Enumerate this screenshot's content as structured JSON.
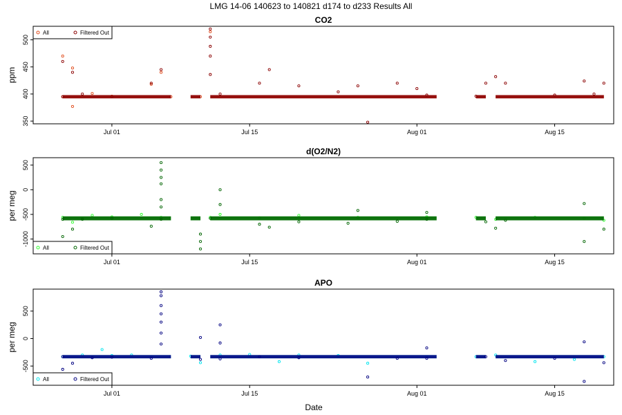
{
  "page_title": "LMG   14-06    140623 to 140821    d174 to d233   Results All",
  "xlabel": "Date",
  "x_ticks": [
    "Jul 01",
    "Jul 15",
    "Aug 01",
    "Aug 15"
  ],
  "chart_data": [
    {
      "type": "scatter",
      "title": "CO2",
      "xlabel": "",
      "ylabel": "ppm",
      "xlim": [
        "2014-06-23",
        "2014-08-21"
      ],
      "ylim": [
        345,
        525
      ],
      "yticks": [
        350,
        400,
        450,
        500
      ],
      "legend_position": "top-left",
      "series": [
        {
          "name": "All",
          "color": "#e04a1a",
          "pattern": "baseline",
          "values": [
            [
              "2014-06-26",
              395
            ],
            [
              "2014-06-26",
              470
            ],
            [
              "2014-06-27",
              448
            ],
            [
              "2014-06-27",
              377
            ],
            [
              "2014-06-29",
              401
            ],
            [
              "2014-07-01",
              396
            ],
            [
              "2014-07-05",
              418
            ],
            [
              "2014-07-06",
              440
            ],
            [
              "2014-07-07",
              395
            ],
            [
              "2014-07-10",
              395
            ],
            [
              "2014-07-11",
              515
            ]
          ]
        },
        {
          "name": "Filtered Out",
          "color": "#8b0000",
          "pattern": "baseline",
          "values": [
            [
              "2014-06-26",
              395
            ],
            [
              "2014-06-26",
              460
            ],
            [
              "2014-06-27",
              440
            ],
            [
              "2014-06-28",
              400
            ],
            [
              "2014-07-01",
              395
            ],
            [
              "2014-07-05",
              420
            ],
            [
              "2014-07-06",
              445
            ],
            [
              "2014-07-11",
              520
            ],
            [
              "2014-07-11",
              505
            ],
            [
              "2014-07-11",
              488
            ],
            [
              "2014-07-11",
              470
            ],
            [
              "2014-07-11",
              436
            ],
            [
              "2014-07-12",
              400
            ],
            [
              "2014-07-16",
              420
            ],
            [
              "2014-07-17",
              445
            ],
            [
              "2014-07-20",
              415
            ],
            [
              "2014-07-24",
              404
            ],
            [
              "2014-07-26",
              415
            ],
            [
              "2014-07-27",
              348
            ],
            [
              "2014-07-30",
              420
            ],
            [
              "2014-08-01",
              410
            ],
            [
              "2014-08-02",
              398
            ],
            [
              "2014-08-07",
              396
            ],
            [
              "2014-08-08",
              420
            ],
            [
              "2014-08-09",
              432
            ],
            [
              "2014-08-10",
              420
            ],
            [
              "2014-08-15",
              398
            ],
            [
              "2014-08-18",
              424
            ],
            [
              "2014-08-19",
              400
            ],
            [
              "2014-08-20",
              420
            ]
          ]
        }
      ]
    },
    {
      "type": "scatter",
      "title": "d(O2/N2)",
      "xlabel": "",
      "ylabel": "per meg",
      "xlim": [
        "2014-06-23",
        "2014-08-21"
      ],
      "ylim": [
        -1300,
        650
      ],
      "yticks": [
        -1000,
        -500,
        0,
        500
      ],
      "legend_position": "bottom-left",
      "series": [
        {
          "name": "All",
          "color": "#33ff33",
          "pattern": "baseline",
          "values": [
            [
              "2014-06-26",
              -560
            ],
            [
              "2014-06-27",
              -660
            ],
            [
              "2014-06-28",
              -590
            ],
            [
              "2014-06-29",
              -520
            ],
            [
              "2014-07-01",
              -550
            ],
            [
              "2014-07-04",
              -500
            ],
            [
              "2014-07-06",
              -560
            ],
            [
              "2014-07-11",
              -560
            ],
            [
              "2014-07-12",
              -500
            ],
            [
              "2014-07-16",
              -570
            ],
            [
              "2014-07-20",
              -520
            ],
            [
              "2014-07-26",
              -560
            ],
            [
              "2014-08-02",
              -550
            ],
            [
              "2014-08-07",
              -560
            ],
            [
              "2014-08-09",
              -600
            ],
            [
              "2014-08-13",
              -560
            ],
            [
              "2014-08-18",
              -580
            ],
            [
              "2014-08-20",
              -620
            ]
          ]
        },
        {
          "name": "Filtered Out",
          "color": "#006400",
          "pattern": "baseline",
          "values": [
            [
              "2014-06-26",
              -600
            ],
            [
              "2014-06-26",
              -950
            ],
            [
              "2014-06-27",
              -800
            ],
            [
              "2014-06-28",
              -600
            ],
            [
              "2014-07-01",
              -580
            ],
            [
              "2014-07-05",
              -740
            ],
            [
              "2014-07-06",
              -600
            ],
            [
              "2014-07-06",
              550
            ],
            [
              "2014-07-06",
              400
            ],
            [
              "2014-07-06",
              250
            ],
            [
              "2014-07-06",
              120
            ],
            [
              "2014-07-06",
              -200
            ],
            [
              "2014-07-06",
              -350
            ],
            [
              "2014-07-10",
              -900
            ],
            [
              "2014-07-10",
              -1050
            ],
            [
              "2014-07-10",
              -1200
            ],
            [
              "2014-07-11",
              -580
            ],
            [
              "2014-07-12",
              0
            ],
            [
              "2014-07-12",
              -300
            ],
            [
              "2014-07-16",
              -700
            ],
            [
              "2014-07-17",
              -760
            ],
            [
              "2014-07-20",
              -650
            ],
            [
              "2014-07-25",
              -680
            ],
            [
              "2014-07-26",
              -420
            ],
            [
              "2014-07-30",
              -640
            ],
            [
              "2014-08-02",
              -600
            ],
            [
              "2014-08-02",
              -460
            ],
            [
              "2014-08-08",
              -650
            ],
            [
              "2014-08-09",
              -780
            ],
            [
              "2014-08-10",
              -620
            ],
            [
              "2014-08-18",
              -280
            ],
            [
              "2014-08-18",
              -1050
            ],
            [
              "2014-08-20",
              -800
            ]
          ]
        }
      ]
    },
    {
      "type": "scatter",
      "title": "APO",
      "xlabel": "Date",
      "ylabel": "per meg",
      "xlim": [
        "2014-06-23",
        "2014-08-21"
      ],
      "ylim": [
        -850,
        900
      ],
      "yticks": [
        -500,
        0,
        500
      ],
      "legend_position": "bottom-left",
      "series": [
        {
          "name": "All",
          "color": "#00e5ee",
          "pattern": "baseline",
          "values": [
            [
              "2014-06-26",
              -330
            ],
            [
              "2014-06-28",
              -300
            ],
            [
              "2014-06-30",
              -200
            ],
            [
              "2014-07-01",
              -310
            ],
            [
              "2014-07-03",
              -300
            ],
            [
              "2014-07-05",
              -330
            ],
            [
              "2014-07-09",
              -320
            ],
            [
              "2014-07-10",
              -440
            ],
            [
              "2014-07-12",
              -300
            ],
            [
              "2014-07-15",
              -290
            ],
            [
              "2014-07-18",
              -420
            ],
            [
              "2014-07-20",
              -300
            ],
            [
              "2014-07-24",
              -310
            ],
            [
              "2014-07-27",
              -450
            ],
            [
              "2014-08-02",
              -330
            ],
            [
              "2014-08-07",
              -330
            ],
            [
              "2014-08-09",
              -300
            ],
            [
              "2014-08-13",
              -420
            ],
            [
              "2014-08-17",
              -380
            ],
            [
              "2014-08-20",
              -330
            ]
          ]
        },
        {
          "name": "Filtered Out",
          "color": "#000080",
          "pattern": "baseline",
          "values": [
            [
              "2014-06-26",
              -330
            ],
            [
              "2014-06-26",
              -560
            ],
            [
              "2014-06-27",
              -450
            ],
            [
              "2014-06-29",
              -350
            ],
            [
              "2014-07-01",
              -340
            ],
            [
              "2014-07-05",
              -360
            ],
            [
              "2014-07-06",
              850
            ],
            [
              "2014-07-06",
              780
            ],
            [
              "2014-07-06",
              600
            ],
            [
              "2014-07-06",
              450
            ],
            [
              "2014-07-06",
              300
            ],
            [
              "2014-07-06",
              100
            ],
            [
              "2014-07-06",
              -100
            ],
            [
              "2014-07-10",
              20
            ],
            [
              "2014-07-10",
              -380
            ],
            [
              "2014-07-12",
              250
            ],
            [
              "2014-07-12",
              -80
            ],
            [
              "2014-07-12",
              -370
            ],
            [
              "2014-07-16",
              -330
            ],
            [
              "2014-07-20",
              -350
            ],
            [
              "2014-07-27",
              -700
            ],
            [
              "2014-07-30",
              -360
            ],
            [
              "2014-08-02",
              -360
            ],
            [
              "2014-08-02",
              -170
            ],
            [
              "2014-08-08",
              -330
            ],
            [
              "2014-08-10",
              -400
            ],
            [
              "2014-08-15",
              -360
            ],
            [
              "2014-08-18",
              -60
            ],
            [
              "2014-08-18",
              -780
            ],
            [
              "2014-08-20",
              -440
            ]
          ]
        }
      ]
    }
  ]
}
